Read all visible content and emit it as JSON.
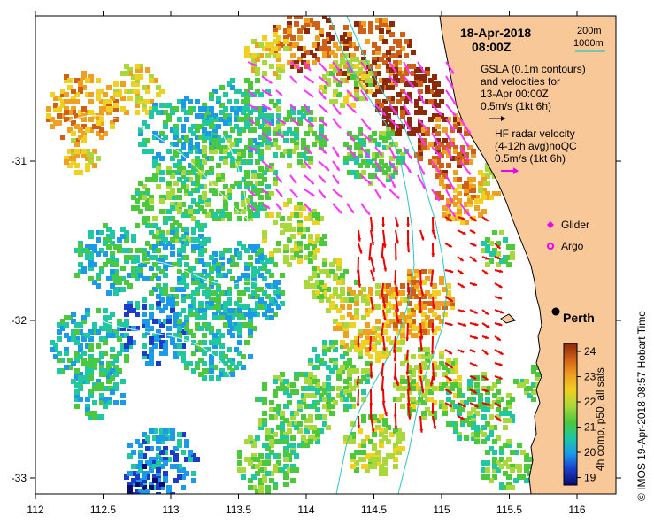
{
  "header": {
    "date": "18-Apr-2018",
    "time": "08:00Z"
  },
  "isobath_legend": {
    "shallow": "200m",
    "deep": "1000m",
    "line_color": "#2ec4c4"
  },
  "gsla_legend": {
    "line1": "GSLA (0.1m contours)",
    "line2": "and velocities for",
    "line3": "13-Apr 00:00Z",
    "line4": "0.5m/s (1kt 6h)"
  },
  "hf_legend": {
    "line1": "HF radar velocity",
    "line2": "(4-12h avg)noQC",
    "line3": "0.5m/s (1kt 6h)"
  },
  "markers": {
    "glider": "Glider",
    "argo": "Argo"
  },
  "city": {
    "name": "Perth"
  },
  "x_axis": {
    "ticks": [
      "112",
      "112.5",
      "113",
      "113.5",
      "114",
      "114.5",
      "115",
      "115.5",
      "116"
    ]
  },
  "y_axis": {
    "ticks": [
      "-31",
      "-32",
      "-33"
    ]
  },
  "colorbar": {
    "label": "4h comp, p50, all sats",
    "ticks": [
      "24",
      "23",
      "22",
      "21",
      "20",
      "19"
    ],
    "stops": [
      "#0a0a6e",
      "#1a3cc8",
      "#1a9ae8",
      "#1fc8a0",
      "#4cc83c",
      "#a8d83c",
      "#f0d020",
      "#f0a020",
      "#d06018",
      "#8a2a0a"
    ]
  },
  "credit": "© IMOS 19-Apr-2018 08:57 Hobart Time",
  "colors": {
    "land": "#f8c898",
    "hf_arrows": "#ee0000",
    "gsla_arrows": "#ff33ff",
    "glider": "#ee00ee",
    "argo": "#ee00ee",
    "coast": "#000000"
  }
}
